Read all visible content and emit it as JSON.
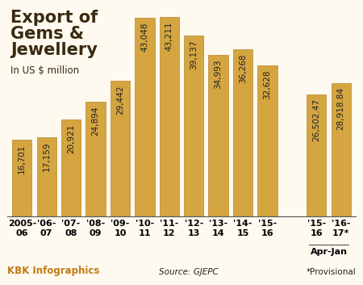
{
  "chart_data": {
    "type": "bar",
    "title": "Export of Gems & Jewellery",
    "subtitle": "In US $ million",
    "categories": [
      "2005-06",
      "'06-07",
      "'07-08",
      "'08-09",
      "'09-10",
      "'10-11",
      "'11-12",
      "'12-13",
      "'13-14",
      "'14-15",
      "'15-16",
      null,
      "'15-16",
      "'16-17*"
    ],
    "values": [
      16701,
      17159,
      20921,
      24894,
      29442,
      43048,
      43211,
      39137,
      34993,
      36268,
      32628,
      null,
      26502.47,
      28918.84
    ],
    "value_labels": [
      "16,701",
      "17,159",
      "20,921",
      "24,894",
      "29,442",
      "43,048",
      "43,211",
      "39,137",
      "34,993",
      "36,268",
      "32,628",
      null,
      "26,502.47",
      "28,918.84"
    ],
    "annotation": "Apr-Jan",
    "credit": "KBK Infographics",
    "source": "Source: GJEPC",
    "note": "*Provisional",
    "color": "#d4a540",
    "ylim": [
      0,
      45000
    ],
    "data_labels": true,
    "tick_labels": "x",
    "grid": false
  }
}
